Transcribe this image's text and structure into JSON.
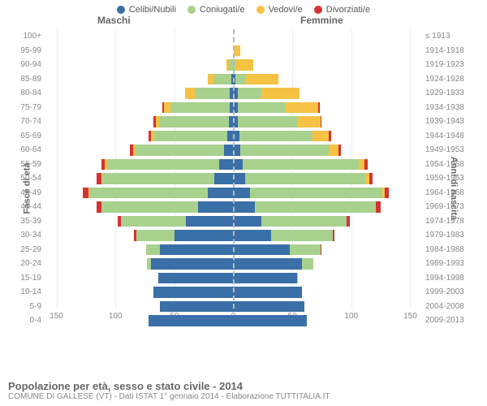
{
  "legend": {
    "items": [
      {
        "label": "Celibi/Nubili",
        "color": "#3a6fa7"
      },
      {
        "label": "Coniugati/e",
        "color": "#a8d18d"
      },
      {
        "label": "Vedovi/e",
        "color": "#f6c244"
      },
      {
        "label": "Divorziati/e",
        "color": "#d43333"
      }
    ]
  },
  "headers": {
    "male": "Maschi",
    "female": "Femmine"
  },
  "axis": {
    "left_title": "Fasce di età",
    "right_title": "Anni di nascita",
    "x_max": 160,
    "x_ticks": [
      150,
      100,
      50,
      0,
      50,
      100,
      150
    ]
  },
  "colors": {
    "celibi": "#3a6fa7",
    "coniugati": "#a8d18d",
    "vedovi": "#f6c244",
    "divorziati": "#d43333",
    "grid": "#eeeeee",
    "center": "#bbbbbb"
  },
  "footer": {
    "title": "Popolazione per età, sesso e stato civile - 2014",
    "subtitle": "COMUNE DI GALLESE (VT) - Dati ISTAT 1° gennaio 2014 - Elaborazione TUTTITALIA.IT"
  },
  "rows": [
    {
      "age": "100+",
      "birth": "≤ 1913",
      "m": {
        "c": 0,
        "con": 0,
        "v": 0,
        "d": 0
      },
      "f": {
        "c": 0,
        "con": 0,
        "v": 0,
        "d": 0
      }
    },
    {
      "age": "95-99",
      "birth": "1914-1918",
      "m": {
        "c": 0,
        "con": 0,
        "v": 0,
        "d": 0
      },
      "f": {
        "c": 0,
        "con": 0,
        "v": 6,
        "d": 0
      }
    },
    {
      "age": "90-94",
      "birth": "1919-1923",
      "m": {
        "c": 0,
        "con": 4,
        "v": 2,
        "d": 0
      },
      "f": {
        "c": 0,
        "con": 2,
        "v": 15,
        "d": 0
      }
    },
    {
      "age": "85-89",
      "birth": "1924-1928",
      "m": {
        "c": 2,
        "con": 14,
        "v": 6,
        "d": 0
      },
      "f": {
        "c": 2,
        "con": 8,
        "v": 28,
        "d": 0
      }
    },
    {
      "age": "80-84",
      "birth": "1929-1933",
      "m": {
        "c": 3,
        "con": 30,
        "v": 8,
        "d": 0
      },
      "f": {
        "c": 4,
        "con": 20,
        "v": 32,
        "d": 0
      }
    },
    {
      "age": "75-79",
      "birth": "1934-1938",
      "m": {
        "c": 3,
        "con": 50,
        "v": 6,
        "d": 1
      },
      "f": {
        "c": 4,
        "con": 40,
        "v": 28,
        "d": 1
      }
    },
    {
      "age": "70-74",
      "birth": "1939-1943",
      "m": {
        "c": 4,
        "con": 58,
        "v": 4,
        "d": 2
      },
      "f": {
        "c": 4,
        "con": 50,
        "v": 20,
        "d": 1
      }
    },
    {
      "age": "65-69",
      "birth": "1944-1948",
      "m": {
        "c": 5,
        "con": 62,
        "v": 3,
        "d": 2
      },
      "f": {
        "c": 5,
        "con": 62,
        "v": 14,
        "d": 2
      }
    },
    {
      "age": "60-64",
      "birth": "1949-1953",
      "m": {
        "c": 8,
        "con": 75,
        "v": 2,
        "d": 3
      },
      "f": {
        "c": 6,
        "con": 75,
        "v": 8,
        "d": 2
      }
    },
    {
      "age": "55-59",
      "birth": "1954-1958",
      "m": {
        "c": 12,
        "con": 95,
        "v": 2,
        "d": 3
      },
      "f": {
        "c": 8,
        "con": 98,
        "v": 5,
        "d": 3
      }
    },
    {
      "age": "50-54",
      "birth": "1959-1963",
      "m": {
        "c": 16,
        "con": 95,
        "v": 1,
        "d": 4
      },
      "f": {
        "c": 10,
        "con": 102,
        "v": 3,
        "d": 3
      }
    },
    {
      "age": "45-49",
      "birth": "1964-1968",
      "m": {
        "c": 22,
        "con": 100,
        "v": 1,
        "d": 5
      },
      "f": {
        "c": 14,
        "con": 112,
        "v": 2,
        "d": 4
      }
    },
    {
      "age": "40-44",
      "birth": "1969-1973",
      "m": {
        "c": 30,
        "con": 82,
        "v": 0,
        "d": 4
      },
      "f": {
        "c": 18,
        "con": 102,
        "v": 1,
        "d": 4
      }
    },
    {
      "age": "35-39",
      "birth": "1974-1978",
      "m": {
        "c": 40,
        "con": 55,
        "v": 0,
        "d": 3
      },
      "f": {
        "c": 24,
        "con": 72,
        "v": 0,
        "d": 3
      }
    },
    {
      "age": "30-34",
      "birth": "1979-1983",
      "m": {
        "c": 50,
        "con": 32,
        "v": 0,
        "d": 2
      },
      "f": {
        "c": 32,
        "con": 52,
        "v": 0,
        "d": 2
      }
    },
    {
      "age": "25-29",
      "birth": "1984-1988",
      "m": {
        "c": 62,
        "con": 12,
        "v": 0,
        "d": 0
      },
      "f": {
        "c": 48,
        "con": 26,
        "v": 0,
        "d": 1
      }
    },
    {
      "age": "20-24",
      "birth": "1989-1993",
      "m": {
        "c": 70,
        "con": 3,
        "v": 0,
        "d": 0
      },
      "f": {
        "c": 58,
        "con": 10,
        "v": 0,
        "d": 0
      }
    },
    {
      "age": "15-19",
      "birth": "1994-1998",
      "m": {
        "c": 64,
        "con": 0,
        "v": 0,
        "d": 0
      },
      "f": {
        "c": 54,
        "con": 1,
        "v": 0,
        "d": 0
      }
    },
    {
      "age": "10-14",
      "birth": "1999-2003",
      "m": {
        "c": 68,
        "con": 0,
        "v": 0,
        "d": 0
      },
      "f": {
        "c": 58,
        "con": 0,
        "v": 0,
        "d": 0
      }
    },
    {
      "age": "5-9",
      "birth": "2004-2008",
      "m": {
        "c": 62,
        "con": 0,
        "v": 0,
        "d": 0
      },
      "f": {
        "c": 60,
        "con": 0,
        "v": 0,
        "d": 0
      }
    },
    {
      "age": "0-4",
      "birth": "2009-2013",
      "m": {
        "c": 72,
        "con": 0,
        "v": 0,
        "d": 0
      },
      "f": {
        "c": 62,
        "con": 0,
        "v": 0,
        "d": 0
      }
    }
  ]
}
